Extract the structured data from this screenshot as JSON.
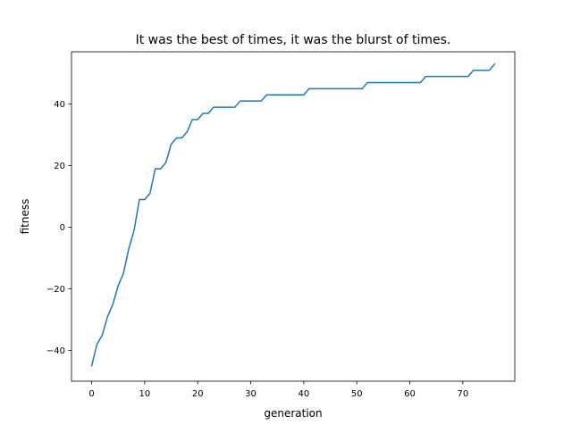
{
  "chart_data": {
    "type": "line",
    "title": "It was the best of times, it was the blurst of times.",
    "xlabel": "generation",
    "ylabel": "fitness",
    "xlim": [
      -3.8,
      79.8
    ],
    "ylim": [
      -50,
      57
    ],
    "xticks": [
      0,
      10,
      20,
      30,
      40,
      50,
      60,
      70
    ],
    "yticks": [
      -40,
      -20,
      0,
      20,
      40
    ],
    "xtick_labels": [
      "0",
      "10",
      "20",
      "30",
      "40",
      "50",
      "60",
      "70"
    ],
    "ytick_labels": [
      "−40",
      "−20",
      "0",
      "20",
      "40"
    ],
    "grid": false,
    "legend": "none",
    "series": [
      {
        "color": "#1f77b4",
        "x": [
          0,
          1,
          2,
          3,
          4,
          5,
          6,
          7,
          8,
          9,
          10,
          11,
          12,
          13,
          14,
          15,
          16,
          17,
          18,
          19,
          20,
          21,
          22,
          23,
          24,
          25,
          26,
          27,
          28,
          29,
          30,
          31,
          32,
          33,
          34,
          35,
          36,
          37,
          38,
          39,
          40,
          41,
          42,
          43,
          44,
          45,
          46,
          47,
          48,
          49,
          50,
          51,
          52,
          53,
          54,
          55,
          56,
          57,
          58,
          59,
          60,
          61,
          62,
          63,
          64,
          65,
          66,
          67,
          68,
          69,
          70,
          71,
          72,
          73,
          74,
          75,
          76
        ],
        "y": [
          -45,
          -38,
          -35,
          -29,
          -25,
          -19,
          -15,
          -7,
          -1,
          9,
          9,
          11,
          19,
          19,
          21,
          27,
          29,
          29,
          31,
          35,
          35,
          37,
          37,
          39,
          39,
          39,
          39,
          39,
          41,
          41,
          41,
          41,
          41,
          43,
          43,
          43,
          43,
          43,
          43,
          43,
          43,
          45,
          45,
          45,
          45,
          45,
          45,
          45,
          45,
          45,
          45,
          45,
          47,
          47,
          47,
          47,
          47,
          47,
          47,
          47,
          47,
          47,
          47,
          49,
          49,
          49,
          49,
          49,
          49,
          49,
          49,
          49,
          51,
          51,
          51,
          51,
          53
        ]
      }
    ]
  }
}
